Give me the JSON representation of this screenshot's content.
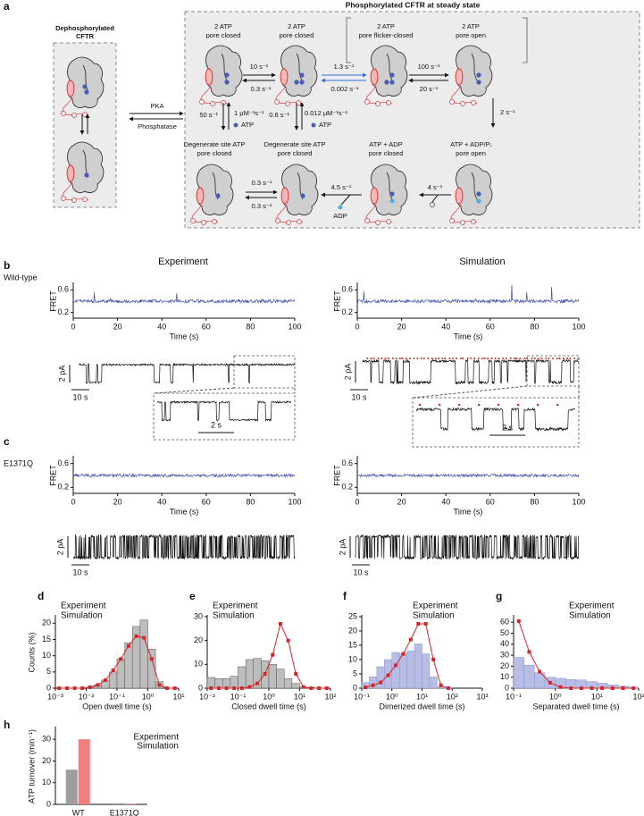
{
  "panel_labels": [
    "a",
    "b",
    "c",
    "d",
    "e",
    "f",
    "g",
    "h"
  ],
  "panel_a": {
    "title": "Phosphorylated CFTR at steady state",
    "dephos_title": [
      "Dephosphorylated",
      "CFTR"
    ],
    "pka": "PKA",
    "phosphatase": "Phosphatase",
    "states": [
      [
        "2 ATP",
        "pore closed"
      ],
      [
        "2 ATP",
        "pore closed"
      ],
      [
        "2 ATP",
        "pore flicker-closed"
      ],
      [
        "2 ATP",
        "pore open"
      ],
      [
        "Degenerate site ATP",
        "pore closed"
      ],
      [
        "Degenerate site ATP",
        "pore closed"
      ],
      [
        "ATP + ADP",
        "pore closed"
      ],
      [
        "ATP + ADP/Pᵢ",
        "pore open"
      ]
    ],
    "rates": [
      "10 s⁻¹",
      "0.3 s⁻¹",
      "1.3 s⁻¹",
      "0.002 s⁻¹",
      "100 s⁻¹",
      "20 s⁻¹",
      "2 s⁻¹",
      "4 s⁻¹",
      "4.5 s⁻¹",
      "0.3 s⁻¹",
      "0.3 s⁻¹",
      "50 s⁻¹",
      "1 μM⁻¹s⁻¹",
      "0.6 s⁻¹",
      "0.012 μM⁻¹s⁻¹"
    ],
    "molecules": [
      "ATP",
      "ATP",
      "ADP"
    ]
  },
  "panel_b": {
    "row_label": "Wild-type",
    "columns": [
      "Experiment",
      "Simulation"
    ],
    "scale_bars": [
      "2 pA",
      "10 s",
      "2 s",
      "2 pA",
      "10 s",
      "2 s"
    ]
  },
  "panel_c": {
    "row_label": "E1371Q",
    "scale_bars": [
      "2 pA",
      "10 s",
      "2 pA",
      "10 s"
    ]
  },
  "chart_data": [
    {
      "type": "trace",
      "ylabel": "FRET",
      "xlabel": "Time (s)",
      "xlim": [
        0,
        100
      ],
      "xticks": [
        0,
        20,
        40,
        60,
        80,
        100
      ],
      "ylim": [
        0.1,
        0.7
      ],
      "yticks": [
        0.2,
        0.6
      ],
      "color": "#3a4fa8"
    },
    {
      "type": "trace",
      "ylabel": "FRET",
      "xlabel": "Time (s)",
      "xlim": [
        0,
        100
      ],
      "xticks": [
        0,
        20,
        40,
        60,
        80,
        100
      ],
      "ylim": [
        0.1,
        0.7
      ],
      "yticks": [
        0.2,
        0.6
      ],
      "color": "#3a4fa8"
    },
    {
      "type": "trace",
      "ylabel": "FRET",
      "xlabel": "Time (s)",
      "xlim": [
        0,
        100
      ],
      "xticks": [
        0,
        20,
        40,
        60,
        80,
        100
      ],
      "ylim": [
        0.1,
        0.7
      ],
      "yticks": [
        0.2,
        0.6
      ],
      "color": "#3a4fa8"
    },
    {
      "type": "trace",
      "ylabel": "FRET",
      "xlabel": "Time (s)",
      "xlim": [
        0,
        100
      ],
      "xticks": [
        0,
        20,
        40,
        60,
        80,
        100
      ],
      "ylim": [
        0.1,
        0.7
      ],
      "yticks": [
        0.2,
        0.6
      ],
      "color": "#3a4fa8"
    },
    {
      "type": "histogram",
      "ylabel": "Counts (%)",
      "xlabel": "Open dwell time (s)",
      "log_x": true,
      "legend": "upper left",
      "xlim": [
        0.001,
        10
      ],
      "xticks": [
        {
          "value": 0.001,
          "label": "10⁻³"
        },
        {
          "value": 0.01,
          "label": "10⁻²"
        },
        {
          "value": 0.1,
          "label": "10⁻¹"
        },
        {
          "value": 1,
          "label": "10⁰"
        },
        {
          "value": 10,
          "label": "10¹"
        }
      ],
      "ylim": [
        0,
        22
      ],
      "yticks": [
        0,
        5,
        10,
        15,
        20
      ],
      "bins": [
        0.001,
        0.00178,
        0.00316,
        0.00562,
        0.01,
        0.0178,
        0.0316,
        0.0562,
        0.1,
        0.178,
        0.316,
        0.562,
        1,
        1.78,
        3.16,
        5.62,
        10
      ],
      "series": [
        {
          "name": "Experiment",
          "color": "#bdbdbd",
          "values": [
            0,
            0,
            0,
            0,
            0.3,
            1,
            2.5,
            5,
            9,
            14,
            19,
            21,
            12,
            2,
            0,
            0
          ]
        },
        {
          "name": "Simulation",
          "color": "#d62728",
          "x": [
            0.00133,
            0.00237,
            0.00422,
            0.0075,
            0.0133,
            0.0237,
            0.0422,
            0.075,
            0.133,
            0.237,
            0.422,
            0.75,
            1.33,
            2.37,
            4.22,
            7.5
          ],
          "values": [
            0,
            0,
            0,
            0,
            0.3,
            1,
            2.5,
            5.5,
            9,
            13,
            16,
            15.5,
            9,
            1,
            0,
            0
          ]
        }
      ]
    },
    {
      "type": "histogram",
      "xlabel": "Closed dwell time (s)",
      "log_x": true,
      "legend": "upper left",
      "xlim": [
        0.01,
        100
      ],
      "xticks": [
        {
          "value": 0.01,
          "label": "10⁻²"
        },
        {
          "value": 0.1,
          "label": "10⁻¹"
        },
        {
          "value": 1,
          "label": "10⁰"
        },
        {
          "value": 10,
          "label": "10¹"
        },
        {
          "value": 100,
          "label": "10²"
        }
      ],
      "ylim": [
        0,
        30
      ],
      "yticks": [
        0,
        10,
        20,
        30
      ],
      "bins": [
        0.01,
        0.0178,
        0.0316,
        0.0562,
        0.1,
        0.178,
        0.316,
        0.562,
        1,
        1.78,
        3.16,
        5.62,
        10,
        17.8,
        31.6,
        56.2,
        100
      ],
      "series": [
        {
          "name": "Experiment",
          "color": "#bdbdbd",
          "values": [
            4.5,
            4,
            4,
            5,
            9,
            12,
            12.5,
            11.5,
            10,
            8,
            4,
            2,
            0.5,
            0.3,
            0,
            0
          ]
        },
        {
          "name": "Simulation",
          "color": "#d62728",
          "x": [
            0.0133,
            0.0237,
            0.0422,
            0.075,
            0.133,
            0.237,
            0.422,
            0.75,
            1.33,
            2.37,
            4.22,
            7.5,
            13.3,
            23.7,
            42.2,
            75
          ],
          "values": [
            0,
            0,
            0,
            0,
            0,
            0.5,
            2,
            6,
            14,
            27,
            20,
            6,
            0.5,
            0,
            0,
            0
          ]
        }
      ]
    },
    {
      "type": "histogram",
      "xlabel": "Dimerized dwell time (s)",
      "log_x": true,
      "legend": "upper right",
      "xlim": [
        0.1,
        1000
      ],
      "xticks": [
        {
          "value": 0.1,
          "label": "10⁻¹"
        },
        {
          "value": 1,
          "label": "10⁰"
        },
        {
          "value": 10,
          "label": "10¹"
        },
        {
          "value": 100,
          "label": "10²"
        },
        {
          "value": 1000,
          "label": "10³"
        }
      ],
      "ylim": [
        0,
        25
      ],
      "yticks": [
        0,
        5,
        10,
        15,
        20,
        25
      ],
      "bins": [
        0.1,
        0.178,
        0.316,
        0.562,
        1,
        1.78,
        3.16,
        5.62,
        10,
        17.8,
        31.6,
        56.2,
        100,
        178,
        316,
        562,
        1000
      ],
      "series": [
        {
          "name": "Experiment",
          "color": "#b8bde6",
          "values": [
            2,
            4,
            7.5,
            10,
            12.5,
            12,
            13,
            15.5,
            12,
            4,
            0.5,
            0.3,
            0,
            0,
            0,
            0
          ]
        },
        {
          "name": "Simulation",
          "color": "#d62728",
          "x": [
            0.133,
            0.237,
            0.422,
            0.75,
            1.33,
            2.37,
            4.22,
            7.5,
            13.3,
            23.7,
            42.2,
            75
          ],
          "values": [
            0.3,
            1,
            2,
            4.5,
            8,
            12,
            17,
            22.5,
            22.5,
            10,
            1,
            0
          ]
        }
      ]
    },
    {
      "type": "histogram",
      "xlabel": "Separated dwell time (s)",
      "log_x": true,
      "legend": "upper right",
      "xlim": [
        0.1,
        100
      ],
      "xticks": [
        {
          "value": 0.1,
          "label": "10⁻¹"
        },
        {
          "value": 1,
          "label": "10⁰"
        },
        {
          "value": 10,
          "label": "10¹"
        },
        {
          "value": 100,
          "label": "10²"
        }
      ],
      "ylim": [
        0,
        65
      ],
      "yticks": [
        0,
        10,
        20,
        30,
        40,
        50,
        60
      ],
      "bins": [
        0.1,
        0.178,
        0.316,
        0.562,
        1,
        1.78,
        3.16,
        5.62,
        10,
        17.8,
        31.6,
        56.2,
        100
      ],
      "series": [
        {
          "name": "Experiment",
          "color": "#b8bde6",
          "values": [
            28,
            21,
            14,
            10,
            9,
            8,
            7.5,
            6,
            4.5,
            3,
            2,
            1
          ]
        },
        {
          "name": "Simulation",
          "color": "#d62728",
          "x": [
            0.133,
            0.237,
            0.422,
            0.75,
            1.33,
            2.37,
            4.22,
            7.5,
            13.3,
            23.7,
            42.2,
            75
          ],
          "values": [
            61,
            33,
            15,
            5,
            1,
            0,
            0,
            0,
            0,
            0,
            0,
            0
          ]
        }
      ]
    },
    {
      "type": "bar",
      "ylabel": "ATP turnover (min⁻¹)",
      "categories": [
        "WT",
        "E1371Q"
      ],
      "ylim": [
        0,
        35
      ],
      "yticks": [
        0,
        10,
        20,
        30
      ],
      "legend": "upper right",
      "series": [
        {
          "name": "Experiment",
          "color": "#9e9e9e",
          "values": [
            16,
            0.5
          ]
        },
        {
          "name": "Simulation",
          "color": "#f08080",
          "values": [
            30,
            0.3
          ]
        }
      ]
    }
  ]
}
